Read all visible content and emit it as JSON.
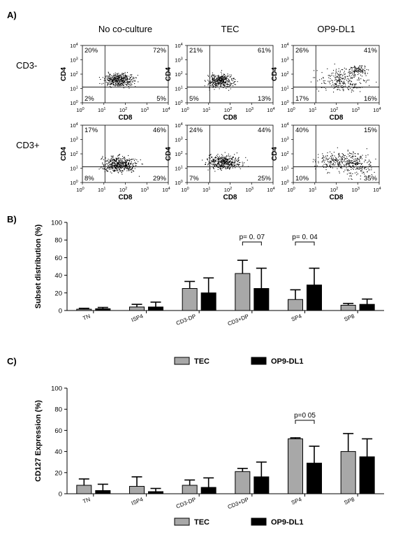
{
  "panels": {
    "a": "A)",
    "b": "B)",
    "c": "C)"
  },
  "flow": {
    "column_titles": [
      "No co-culture",
      "TEC",
      "OP9-DL1"
    ],
    "row_labels": [
      "CD3-",
      "CD3+"
    ],
    "xlabel": "CD8",
    "ylabel": "CD4",
    "tick_exponents": [
      "0",
      "1",
      "2",
      "3",
      "4"
    ],
    "tick_base": "10",
    "plots": [
      {
        "row": 0,
        "col": 0,
        "q": [
          "20%",
          "72%",
          "2%",
          "5%"
        ]
      },
      {
        "row": 0,
        "col": 1,
        "q": [
          "21%",
          "61%",
          "5%",
          "13%"
        ]
      },
      {
        "row": 0,
        "col": 2,
        "q": [
          "26%",
          "41%",
          "17%",
          "16%"
        ]
      },
      {
        "row": 1,
        "col": 0,
        "q": [
          "17%",
          "46%",
          "8%",
          "29%"
        ]
      },
      {
        "row": 1,
        "col": 1,
        "q": [
          "24%",
          "44%",
          "7%",
          "25%"
        ]
      },
      {
        "row": 1,
        "col": 2,
        "q": [
          "40%",
          "15%",
          "10%",
          "35%"
        ]
      }
    ]
  },
  "chart_data": [
    {
      "type": "bar",
      "title": "",
      "xlabel": "",
      "ylabel": "Subset distribution (%)",
      "ylim": [
        0,
        100
      ],
      "yticks": [
        0,
        20,
        40,
        60,
        80,
        100
      ],
      "categories": [
        "TN",
        "ISP4",
        "CD3-DP",
        "CD3+DP",
        "SP4",
        "SP8"
      ],
      "series": [
        {
          "name": "TEC",
          "color": "#a8a8a8",
          "values": [
            1.5,
            4,
            25,
            42,
            12.5,
            6
          ],
          "errors": [
            1,
            3,
            8,
            15,
            11,
            2
          ]
        },
        {
          "name": "OP9-DL1",
          "color": "#000000",
          "values": [
            2,
            4,
            20,
            25,
            29,
            7
          ],
          "errors": [
            1.5,
            5.5,
            17,
            23,
            19,
            6
          ]
        }
      ],
      "annotations": [
        {
          "text": "p= 0. 07",
          "category": "CD3+DP"
        },
        {
          "text": "p= 0. 04",
          "category": "SP4"
        }
      ],
      "legend": "bottom"
    },
    {
      "type": "bar",
      "title": "",
      "xlabel": "",
      "ylabel": "CD127 Expression (%)",
      "ylim": [
        0,
        100
      ],
      "yticks": [
        0,
        20,
        40,
        60,
        80,
        100
      ],
      "categories": [
        "TN",
        "ISP4",
        "CD3-DP",
        "CD3+DP",
        "SP4",
        "SP8"
      ],
      "series": [
        {
          "name": "TEC",
          "color": "#a8a8a8",
          "values": [
            8,
            7,
            8,
            21,
            52,
            40
          ],
          "errors": [
            6,
            9,
            5,
            3,
            1,
            17
          ]
        },
        {
          "name": "OP9-DL1",
          "color": "#000000",
          "values": [
            3,
            2,
            6,
            16,
            29,
            35
          ],
          "errors": [
            6,
            3,
            9,
            14,
            16,
            17
          ]
        }
      ],
      "annotations": [
        {
          "text": "p=0 05",
          "category": "SP4"
        }
      ],
      "legend": "bottom"
    }
  ]
}
